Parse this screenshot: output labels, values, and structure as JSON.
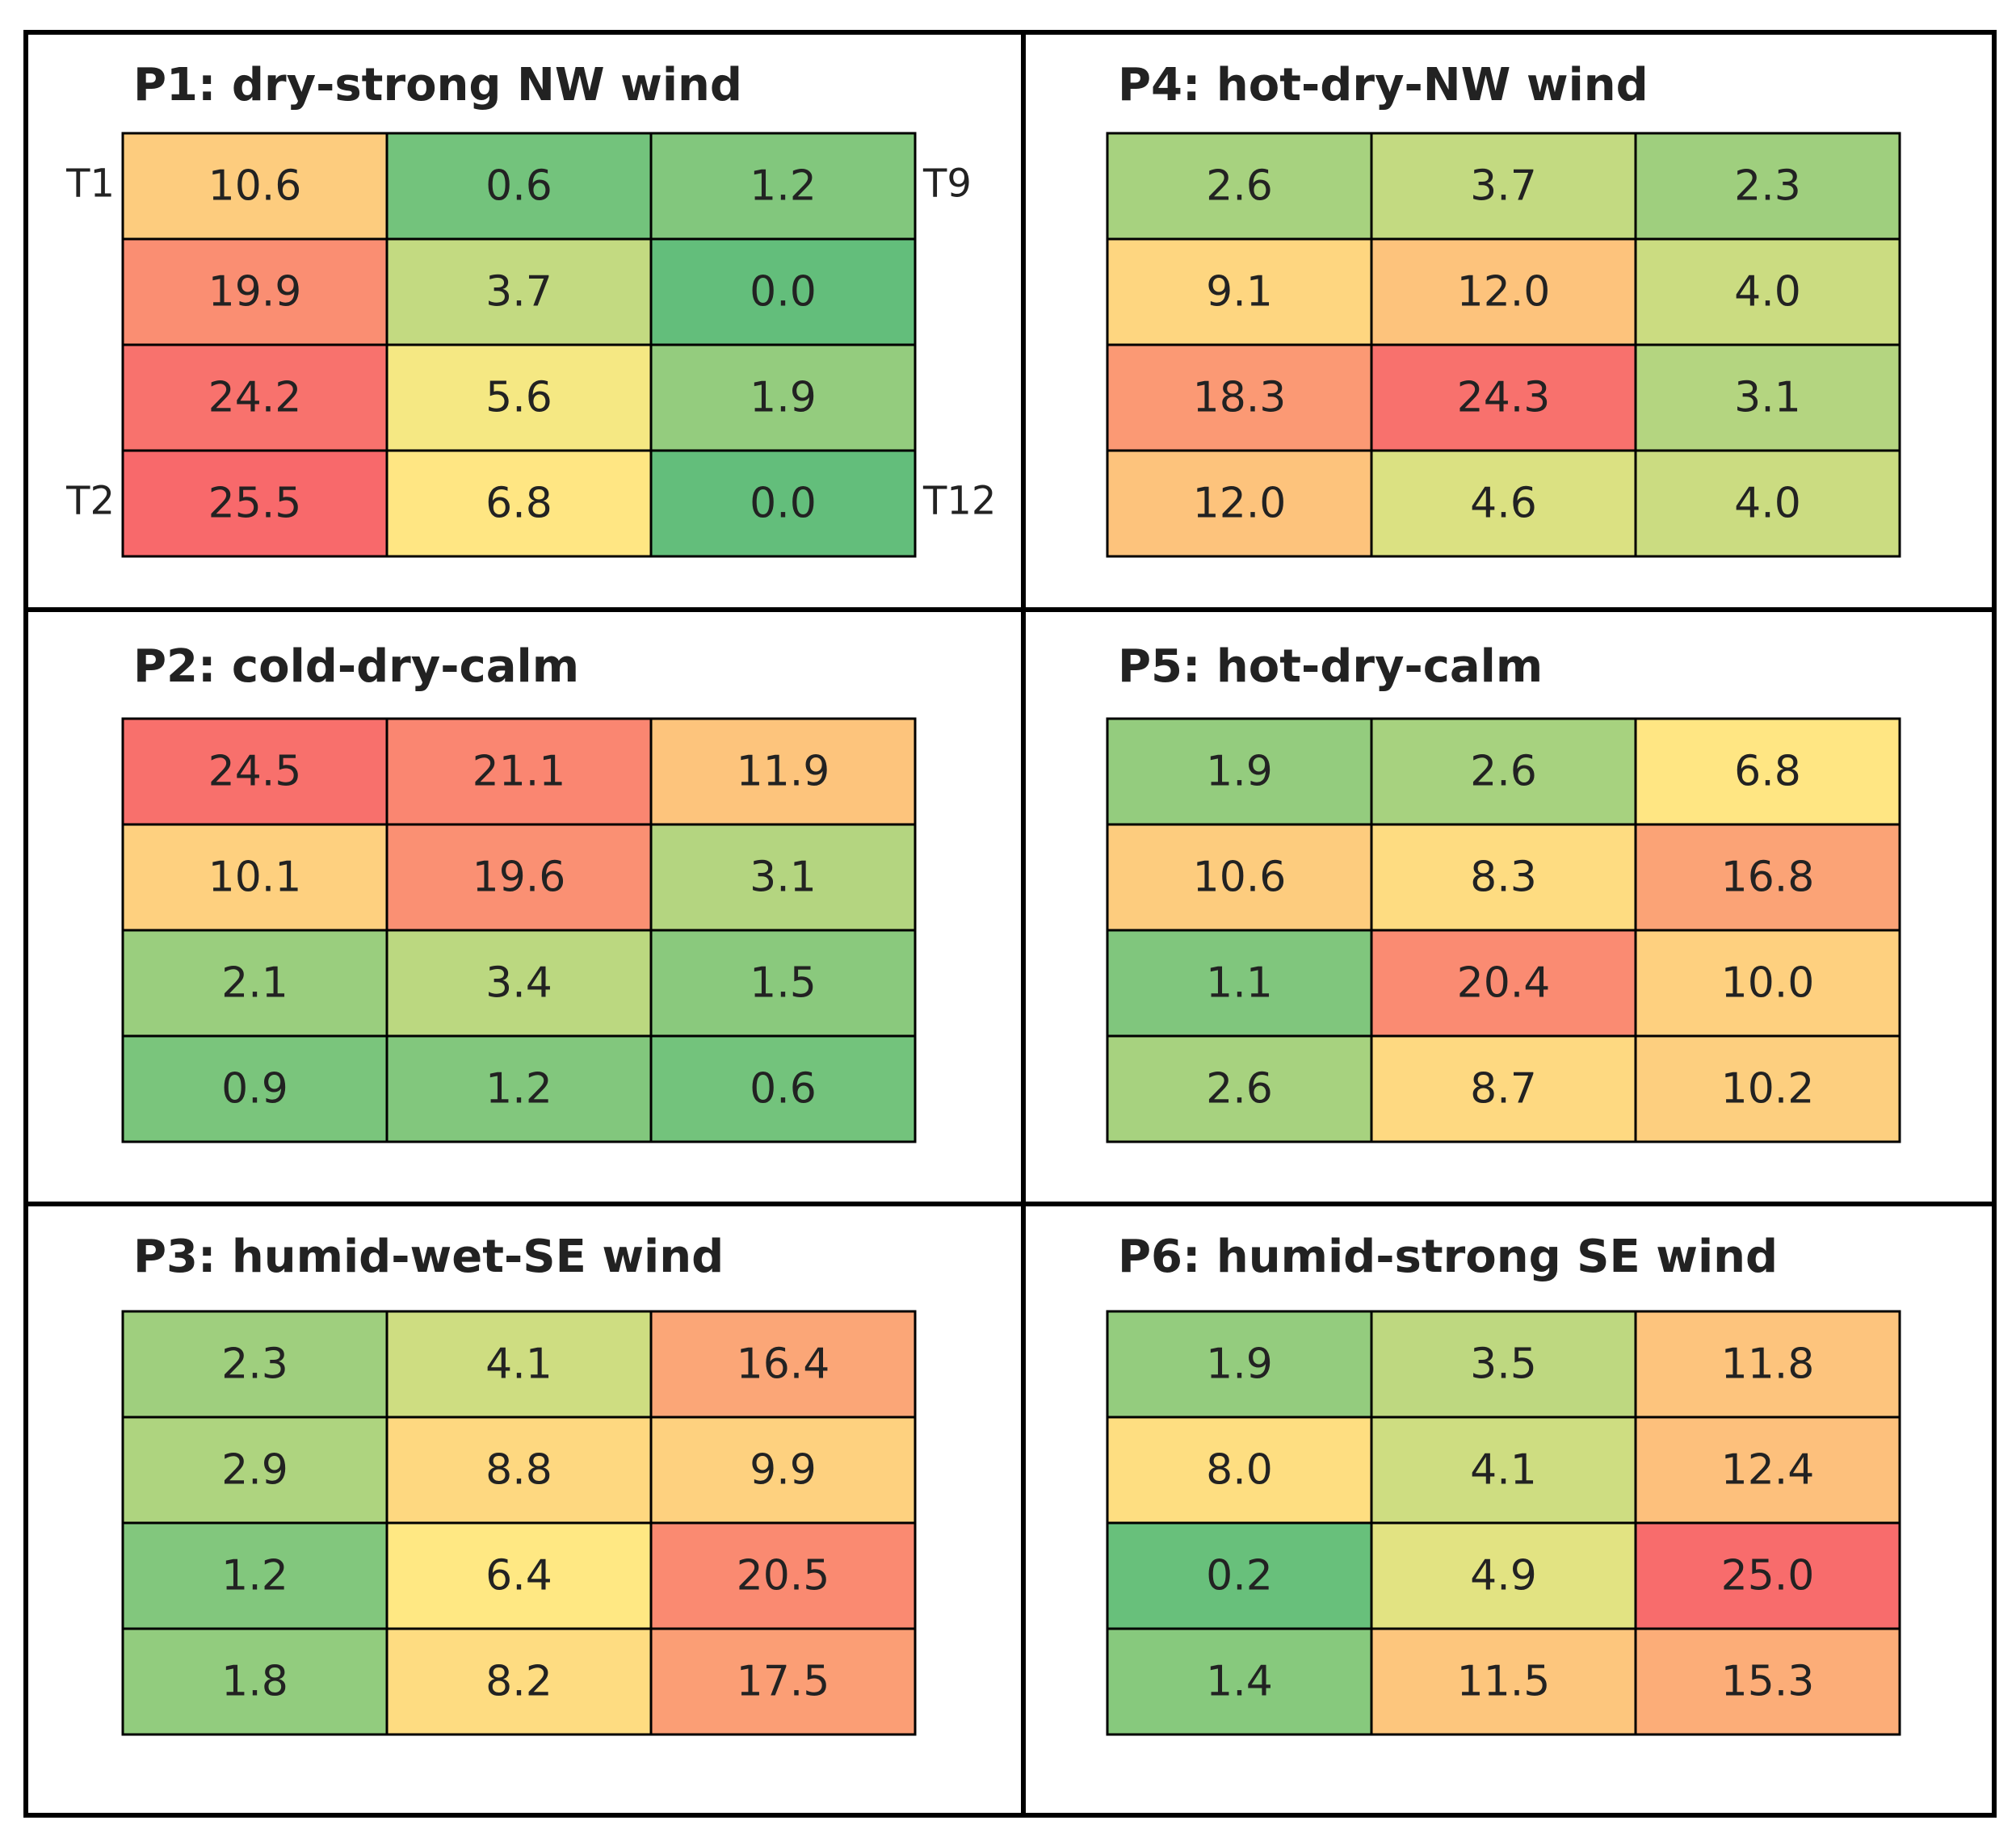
{
  "chart_data": [
    {
      "type": "heatmap",
      "title": "P1: dry-strong NW wind",
      "annotations": [
        "T1",
        "T9",
        "T2",
        "T12"
      ],
      "colormap": [
        "#63be7b",
        "#ffeb84",
        "#f8696b"
      ],
      "values": [
        [
          10.6,
          0.6,
          1.2
        ],
        [
          19.9,
          3.7,
          0.0
        ],
        [
          24.2,
          5.6,
          1.9
        ],
        [
          25.5,
          6.8,
          0.0
        ]
      ],
      "value_labels": [
        [
          "10.6",
          "0.6",
          "1.2"
        ],
        [
          "19.9",
          "3.7",
          "0.0"
        ],
        [
          "24.2",
          "5.6",
          "1.9"
        ],
        [
          "25.5",
          "6.8",
          "0.0"
        ]
      ]
    },
    {
      "type": "heatmap",
      "title": "P4: hot-dry-NW wind",
      "colormap": [
        "#63be7b",
        "#ffeb84",
        "#f8696b"
      ],
      "values": [
        [
          2.6,
          3.7,
          2.3
        ],
        [
          9.1,
          12.0,
          4.0
        ],
        [
          18.3,
          24.3,
          3.1
        ],
        [
          12.0,
          4.6,
          4.0
        ]
      ],
      "value_labels": [
        [
          "2.6",
          "3.7",
          "2.3"
        ],
        [
          "9.1",
          "12.0",
          "4.0"
        ],
        [
          "18.3",
          "24.3",
          "3.1"
        ],
        [
          "12.0",
          "4.6",
          "4.0"
        ]
      ]
    },
    {
      "type": "heatmap",
      "title": "P2: cold-dry-calm",
      "colormap": [
        "#63be7b",
        "#ffeb84",
        "#f8696b"
      ],
      "values": [
        [
          24.5,
          21.1,
          11.9
        ],
        [
          10.1,
          19.6,
          3.1
        ],
        [
          2.1,
          3.4,
          1.5
        ],
        [
          0.9,
          1.2,
          0.6
        ]
      ],
      "value_labels": [
        [
          "24.5",
          "21.1",
          "11.9"
        ],
        [
          "10.1",
          "19.6",
          "3.1"
        ],
        [
          "2.1",
          "3.4",
          "1.5"
        ],
        [
          "0.9",
          "1.2",
          "0.6"
        ]
      ]
    },
    {
      "type": "heatmap",
      "title": "P5: hot-dry-calm",
      "colormap": [
        "#63be7b",
        "#ffeb84",
        "#f8696b"
      ],
      "values": [
        [
          1.9,
          2.6,
          6.8
        ],
        [
          10.6,
          8.3,
          16.8
        ],
        [
          1.1,
          20.4,
          10.0
        ],
        [
          2.6,
          8.7,
          10.2
        ]
      ],
      "value_labels": [
        [
          "1.9",
          "2.6",
          "6.8"
        ],
        [
          "10.6",
          "8.3",
          "16.8"
        ],
        [
          "1.1",
          "20.4",
          "10.0"
        ],
        [
          "2.6",
          "8.7",
          "10.2"
        ]
      ]
    },
    {
      "type": "heatmap",
      "title": "P3: humid-wet-SE wind",
      "colormap": [
        "#63be7b",
        "#ffeb84",
        "#f8696b"
      ],
      "values": [
        [
          2.3,
          4.1,
          16.4
        ],
        [
          2.9,
          8.8,
          9.9
        ],
        [
          1.2,
          6.4,
          20.5
        ],
        [
          1.8,
          8.2,
          17.5
        ]
      ],
      "value_labels": [
        [
          "2.3",
          "4.1",
          "16.4"
        ],
        [
          "2.9",
          "8.8",
          "9.9"
        ],
        [
          "1.2",
          "6.4",
          "20.5"
        ],
        [
          "1.8",
          "8.2",
          "17.5"
        ]
      ]
    },
    {
      "type": "heatmap",
      "title": "P6: humid-strong SE wind",
      "colormap": [
        "#63be7b",
        "#ffeb84",
        "#f8696b"
      ],
      "values": [
        [
          1.9,
          3.5,
          11.8
        ],
        [
          8.0,
          4.1,
          12.4
        ],
        [
          0.2,
          4.9,
          25.0
        ],
        [
          1.4,
          11.5,
          15.3
        ]
      ],
      "value_labels": [
        [
          "1.9",
          "3.5",
          "11.8"
        ],
        [
          "8.0",
          "4.1",
          "12.4"
        ],
        [
          "0.2",
          "4.9",
          "25.0"
        ],
        [
          "1.4",
          "11.5",
          "15.3"
        ]
      ]
    }
  ]
}
